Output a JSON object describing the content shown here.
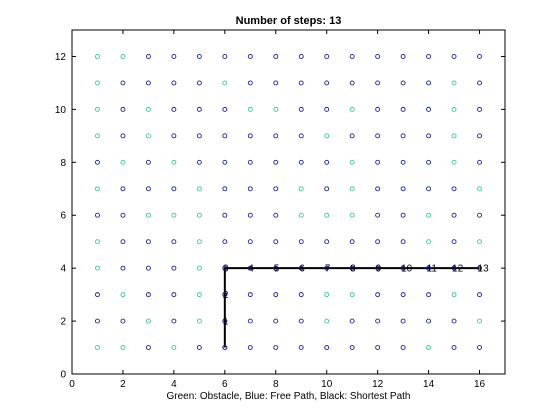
{
  "chart_data": {
    "type": "scatter",
    "title": "Number of steps: 13",
    "xlabel": "Green: Obstacle, Blue: Free Path, Black: Shortest Path",
    "ylabel": "",
    "xlim": [
      0,
      17
    ],
    "ylim": [
      0,
      13
    ],
    "x_ticks": [
      0,
      2,
      4,
      6,
      8,
      10,
      12,
      14,
      16
    ],
    "y_ticks": [
      0,
      2,
      4,
      6,
      8,
      10,
      12
    ],
    "grid": false,
    "colors": {
      "obstacle": "#33cc99",
      "free": "#1f1fa8",
      "path": "#000000"
    },
    "grid_points": {
      "x_range": [
        1,
        16
      ],
      "y_range": [
        1,
        12
      ]
    },
    "obstacles": [
      [
        1,
        12
      ],
      [
        2,
        12
      ],
      [
        1,
        11
      ],
      [
        1,
        10
      ],
      [
        3,
        10
      ],
      [
        1,
        9
      ],
      [
        3,
        9
      ],
      [
        2,
        8
      ],
      [
        4,
        8
      ],
      [
        1,
        7
      ],
      [
        5,
        7
      ],
      [
        3,
        6
      ],
      [
        4,
        6
      ],
      [
        5,
        6
      ],
      [
        1,
        5
      ],
      [
        5,
        5
      ],
      [
        1,
        4
      ],
      [
        5,
        4
      ],
      [
        5,
        3
      ],
      [
        2,
        3
      ],
      [
        3,
        2
      ],
      [
        5,
        2
      ],
      [
        1,
        1
      ],
      [
        2,
        1
      ],
      [
        4,
        1
      ],
      [
        6,
        11
      ],
      [
        7,
        10
      ],
      [
        8,
        10
      ],
      [
        11,
        10
      ],
      [
        10,
        9
      ],
      [
        9,
        7
      ],
      [
        9,
        6
      ],
      [
        10,
        6
      ],
      [
        11,
        8
      ],
      [
        11,
        7
      ],
      [
        11,
        6
      ],
      [
        14,
        6
      ],
      [
        14,
        5
      ],
      [
        15,
        11
      ],
      [
        15,
        10
      ],
      [
        15,
        9
      ],
      [
        15,
        8
      ],
      [
        16,
        7
      ],
      [
        16,
        5
      ],
      [
        15,
        3
      ],
      [
        16,
        2
      ],
      [
        14,
        1
      ],
      [
        10,
        3
      ],
      [
        11,
        3
      ],
      [
        10,
        2
      ]
    ],
    "path": [
      [
        6,
        1
      ],
      [
        6,
        2
      ],
      [
        6,
        3
      ],
      [
        6,
        4
      ],
      [
        7,
        4
      ],
      [
        8,
        4
      ],
      [
        9,
        4
      ],
      [
        10,
        4
      ],
      [
        11,
        4
      ],
      [
        12,
        4
      ],
      [
        13,
        4
      ],
      [
        14,
        4
      ],
      [
        15,
        4
      ],
      [
        16,
        4
      ]
    ],
    "path_labels": [
      "",
      "1",
      "2",
      "3",
      "4",
      "5",
      "6",
      "7",
      "8",
      "9",
      "10",
      "11",
      "12",
      "13"
    ]
  }
}
